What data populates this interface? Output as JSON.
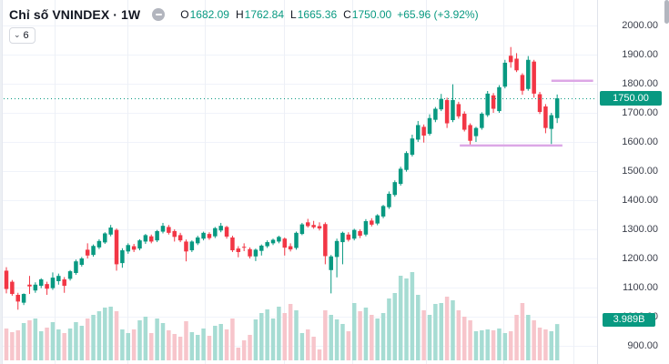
{
  "header": {
    "title": "Chỉ số VNINDEX · 1W",
    "status_icon": "minus-circle-icon",
    "ohlc": {
      "o_label": "O",
      "o_value": "1682.09",
      "h_label": "H",
      "h_value": "1762.84",
      "l_label": "L",
      "l_value": "1665.36",
      "c_label": "C",
      "c_value": "1750.00",
      "change": "+65.96 (+3.92%)"
    },
    "collapse_button": {
      "chevron": "⌄",
      "count": "6"
    }
  },
  "price_axis": {
    "tick_labels": [
      "2000.00",
      "1900.00",
      "1800.00",
      "1700.00",
      "1600.00",
      "1500.00",
      "1400.00",
      "1300.00",
      "1200.00",
      "1100.00",
      "1000.00",
      "900.00"
    ],
    "last_price_badge": "1750.00",
    "volume_badge": "3.989B"
  },
  "colors": {
    "up": "#089981",
    "down": "#f23645",
    "volume_up": "#a6dcd3",
    "volume_down": "#f7c5cb",
    "grid": "#f0f3fa",
    "grid_vertical": "#edf0f6",
    "axis_text": "#3a3e4a",
    "axis_border": "#e0e3eb",
    "badge_bg": "#089981",
    "drawing_line": "#dca7e6",
    "header_text": "#131722",
    "last_price_line": "#089981"
  },
  "chart_data": {
    "type": "candlestick",
    "title": "VNINDEX weekly candles with volume pane",
    "timeframe": "1W",
    "ylim": [
      880,
      2060
    ],
    "y_ticks": [
      2000,
      1900,
      1800,
      1700,
      1600,
      1500,
      1400,
      1300,
      1200,
      1100,
      1000,
      900
    ],
    "grid": true,
    "legend_position": "top-left",
    "last_close": 1750.0,
    "last_volume_billions": 3.989,
    "volume_unit": "B",
    "columns": [
      "open",
      "high",
      "low",
      "close",
      "volume_B"
    ],
    "candles": [
      [
        1158,
        1170,
        1080,
        1095,
        3.5
      ],
      [
        1120,
        1126,
        1072,
        1078,
        3.1
      ],
      [
        1075,
        1082,
        1024,
        1052,
        3.3
      ],
      [
        1048,
        1080,
        1040,
        1078,
        4.1
      ],
      [
        1110,
        1140,
        1078,
        1104,
        4.4
      ],
      [
        1090,
        1118,
        1082,
        1110,
        4.6
      ],
      [
        1106,
        1132,
        1098,
        1128,
        3.2
      ],
      [
        1112,
        1120,
        1075,
        1096,
        3.6
      ],
      [
        1098,
        1152,
        1092,
        1134,
        4.2
      ],
      [
        1122,
        1148,
        1110,
        1140,
        3.4
      ],
      [
        1128,
        1136,
        1082,
        1106,
        3.0
      ],
      [
        1130,
        1160,
        1124,
        1156,
        3.5
      ],
      [
        1150,
        1196,
        1144,
        1190,
        4.2
      ],
      [
        1178,
        1205,
        1172,
        1200,
        3.8
      ],
      [
        1230,
        1252,
        1200,
        1210,
        4.6
      ],
      [
        1212,
        1248,
        1206,
        1243,
        5.0
      ],
      [
        1238,
        1266,
        1232,
        1260,
        5.4
      ],
      [
        1255,
        1290,
        1250,
        1286,
        5.8
      ],
      [
        1282,
        1315,
        1276,
        1306,
        5.9
      ],
      [
        1298,
        1303,
        1158,
        1180,
        5.4
      ],
      [
        1184,
        1235,
        1168,
        1228,
        3.4
      ],
      [
        1224,
        1252,
        1216,
        1246,
        3.0
      ],
      [
        1242,
        1250,
        1222,
        1230,
        3.4
      ],
      [
        1234,
        1266,
        1228,
        1262,
        4.4
      ],
      [
        1258,
        1284,
        1250,
        1280,
        4.8
      ],
      [
        1276,
        1282,
        1252,
        1258,
        3.0
      ],
      [
        1262,
        1298,
        1256,
        1294,
        4.6
      ],
      [
        1292,
        1322,
        1286,
        1312,
        4.1
      ],
      [
        1308,
        1315,
        1282,
        1288,
        3.3
      ],
      [
        1294,
        1300,
        1258,
        1274,
        2.9
      ],
      [
        1280,
        1288,
        1256,
        1262,
        2.6
      ],
      [
        1258,
        1265,
        1190,
        1224,
        4.3
      ],
      [
        1228,
        1262,
        1222,
        1258,
        3.1
      ],
      [
        1252,
        1278,
        1246,
        1272,
        2.8
      ],
      [
        1268,
        1292,
        1262,
        1288,
        3.5
      ],
      [
        1284,
        1290,
        1264,
        1270,
        2.7
      ],
      [
        1276,
        1308,
        1270,
        1304,
        3.8
      ],
      [
        1296,
        1322,
        1290,
        1312,
        4.0
      ],
      [
        1308,
        1312,
        1268,
        1275,
        3.4
      ],
      [
        1272,
        1278,
        1222,
        1228,
        4.6
      ],
      [
        1234,
        1242,
        1204,
        1222,
        1.4
      ],
      [
        1240,
        1252,
        1225,
        1238,
        2.2
      ],
      [
        1232,
        1238,
        1200,
        1207,
        2.8
      ],
      [
        1207,
        1234,
        1191,
        1230,
        4.5
      ],
      [
        1226,
        1248,
        1210,
        1244,
        5.2
      ],
      [
        1242,
        1262,
        1236,
        1256,
        5.6
      ],
      [
        1252,
        1268,
        1246,
        1264,
        4.6
      ],
      [
        1258,
        1278,
        1252,
        1274,
        5.9
      ],
      [
        1268,
        1272,
        1210,
        1237,
        5.2
      ],
      [
        1242,
        1252,
        1224,
        1231,
        6.2
      ],
      [
        1236,
        1292,
        1230,
        1288,
        5.5
      ],
      [
        1284,
        1322,
        1280,
        1317,
        3.0
      ],
      [
        1324,
        1336,
        1306,
        1311,
        3.4
      ],
      [
        1315,
        1329,
        1302,
        1307,
        2.6
      ],
      [
        1311,
        1324,
        1296,
        1303,
        1.2
      ],
      [
        1318,
        1324,
        1180,
        1208,
        5.5
      ],
      [
        1160,
        1212,
        1080,
        1207,
        5.0
      ],
      [
        1205,
        1268,
        1135,
        1260,
        4.5
      ],
      [
        1256,
        1292,
        1180,
        1288,
        4.0
      ],
      [
        1282,
        1290,
        1258,
        1264,
        3.2
      ],
      [
        1268,
        1302,
        1262,
        1298,
        6.3
      ],
      [
        1294,
        1300,
        1270,
        1278,
        5.4
      ],
      [
        1282,
        1335,
        1276,
        1328,
        5.8
      ],
      [
        1330,
        1338,
        1310,
        1316,
        5.0
      ],
      [
        1320,
        1352,
        1314,
        1348,
        4.6
      ],
      [
        1344,
        1384,
        1338,
        1380,
        5.2
      ],
      [
        1376,
        1430,
        1370,
        1422,
        6.8
      ],
      [
        1418,
        1468,
        1412,
        1462,
        7.4
      ],
      [
        1456,
        1515,
        1450,
        1508,
        9.3
      ],
      [
        1504,
        1568,
        1498,
        1562,
        9.0
      ],
      [
        1556,
        1625,
        1550,
        1612,
        9.7
      ],
      [
        1608,
        1672,
        1600,
        1658,
        7.2
      ],
      [
        1652,
        1660,
        1598,
        1622,
        5.5
      ],
      [
        1628,
        1695,
        1622,
        1682,
        5.0
      ],
      [
        1676,
        1720,
        1668,
        1714,
        6.2
      ],
      [
        1712,
        1765,
        1706,
        1748,
        6.3
      ],
      [
        1744,
        1752,
        1648,
        1664,
        7.0
      ],
      [
        1675,
        1798,
        1668,
        1744,
        6.6
      ],
      [
        1730,
        1738,
        1680,
        1688,
        5.5
      ],
      [
        1697,
        1705,
        1636,
        1642,
        4.8
      ],
      [
        1658,
        1664,
        1588,
        1604,
        4.4
      ],
      [
        1620,
        1652,
        1600,
        1648,
        3.2
      ],
      [
        1648,
        1702,
        1642,
        1697,
        3.3
      ],
      [
        1692,
        1775,
        1686,
        1766,
        3.4
      ],
      [
        1760,
        1768,
        1700,
        1714,
        3.3
      ],
      [
        1706,
        1795,
        1700,
        1788,
        3.5
      ],
      [
        1790,
        1882,
        1784,
        1872,
        3.0
      ],
      [
        1896,
        1926,
        1855,
        1874,
        3.2
      ],
      [
        1886,
        1905,
        1840,
        1846,
        5.0
      ],
      [
        1830,
        1836,
        1762,
        1776,
        6.3
      ],
      [
        1782,
        1895,
        1776,
        1882,
        5.0
      ],
      [
        1876,
        1882,
        1752,
        1766,
        4.4
      ],
      [
        1764,
        1772,
        1696,
        1703,
        3.6
      ],
      [
        1722,
        1730,
        1630,
        1648,
        3.4
      ],
      [
        1645,
        1700,
        1593,
        1692,
        3.2
      ],
      [
        1682,
        1763,
        1665,
        1750,
        3.989
      ]
    ],
    "drawings": [
      {
        "type": "horizontal-segment",
        "price": 1588,
        "from_index": 78.2,
        "to_index": 95.9
      },
      {
        "type": "horizontal-segment",
        "price": 1810,
        "from_index": 94.0,
        "to_index": 101.2
      }
    ]
  }
}
